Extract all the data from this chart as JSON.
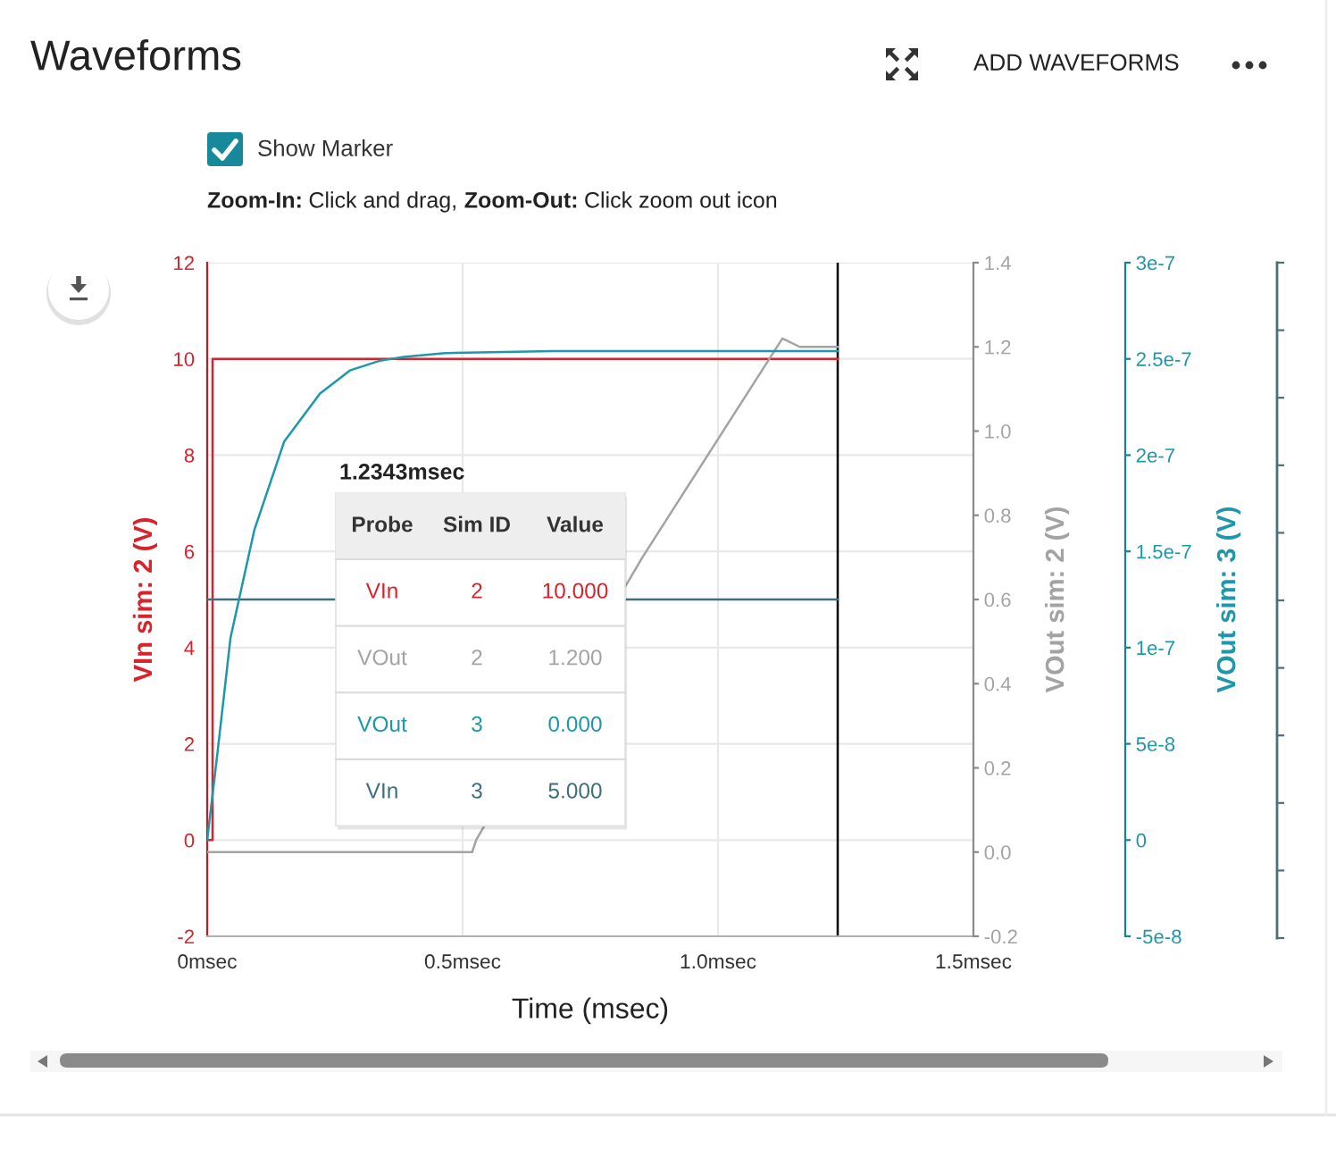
{
  "chart_data": {
    "type": "line",
    "title": "Waveforms",
    "xlabel": "Time (msec)",
    "ylabel": "VIn sim: 2 (V)",
    "y2label": "VOut sim: 2 (V)",
    "y3label": "VOut sim: 3 (V)",
    "xlim": [
      0,
      1.5
    ],
    "xticks": [
      {
        "value": 0,
        "label": "0msec"
      },
      {
        "value": 0.5,
        "label": "0.5msec"
      },
      {
        "value": 1.0,
        "label": "1.0msec"
      },
      {
        "value": 1.5,
        "label": "1.5msec"
      }
    ],
    "ylim": [
      -2,
      12
    ],
    "yticks": [
      -2,
      0,
      2,
      4,
      6,
      8,
      10,
      12
    ],
    "y2lim": [
      -0.2,
      1.4
    ],
    "y2ticks": [
      -0.2,
      {
        "value": 0,
        "label": "0.0"
      },
      0.2,
      0.4,
      0.6,
      0.8,
      {
        "value": 1,
        "label": "1.0"
      },
      1.2,
      1.4
    ],
    "y3lim": [
      -5e-08,
      3e-07
    ],
    "y3ticks": [
      {
        "value": -5e-08,
        "label": "-5e-8"
      },
      {
        "value": 0,
        "label": "0"
      },
      {
        "value": 5e-08,
        "label": "5e-8"
      },
      {
        "value": 1e-07,
        "label": "1e-7"
      },
      {
        "value": 1.5e-07,
        "label": "1.5e-7"
      },
      {
        "value": 2e-07,
        "label": "2e-7"
      },
      {
        "value": 2.5e-07,
        "label": "2.5e-7"
      },
      {
        "value": 3e-07,
        "label": "3e-7"
      }
    ],
    "grid": true,
    "line_style": "solid",
    "ref_lines": [
      {
        "axis": "x",
        "value": 1.2343,
        "label": "1.2343msec",
        "color": "#000000"
      }
    ],
    "series": [
      {
        "color": "#d8232c",
        "axis": "y",
        "x": [
          0,
          0.0105,
          0.0105,
          0.3,
          0.6,
          0.9,
          1.2343
        ],
        "values": [
          0,
          0,
          10,
          10,
          10,
          10,
          10
        ]
      },
      {
        "color": "#a3a3a3",
        "axis": "y2",
        "x": [
          0,
          0.5187,
          0.527,
          0.852,
          1.126,
          1.16,
          1.2343
        ],
        "values": [
          0,
          0,
          0.03,
          0.7,
          1.22,
          1.2,
          1.2
        ]
      },
      {
        "color": "#1e97a9",
        "axis": "y3",
        "x": [
          0,
          0.02,
          0.0456,
          0.0922,
          0.1507,
          0.2208,
          0.2793,
          0.3375,
          0.3845,
          0.4661,
          0.6764,
          1.2343
        ],
        "values": [
          0,
          4.5e-08,
          1.05e-07,
          1.61e-07,
          2.07e-07,
          2.32e-07,
          2.44e-07,
          2.49e-07,
          2.51e-07,
          2.53e-07,
          2.54e-07,
          2.54e-07
        ]
      },
      {
        "color": "#3f6f7c",
        "axis": "y",
        "x": [
          0,
          1.2343
        ],
        "values": [
          5,
          5
        ]
      }
    ],
    "annotations": [
      "ADD WAVEFORMS",
      "Show Marker",
      "Zoom-In:",
      "Click and drag,",
      "Zoom-Out:",
      "Click zoom out icon",
      "Probe",
      "Sim ID",
      "Value",
      "VIn",
      "2",
      "10.000",
      "VOut",
      "2",
      "1.200",
      "VOut",
      "3",
      "0.000",
      "VIn",
      "3",
      "5.000"
    ]
  }
}
